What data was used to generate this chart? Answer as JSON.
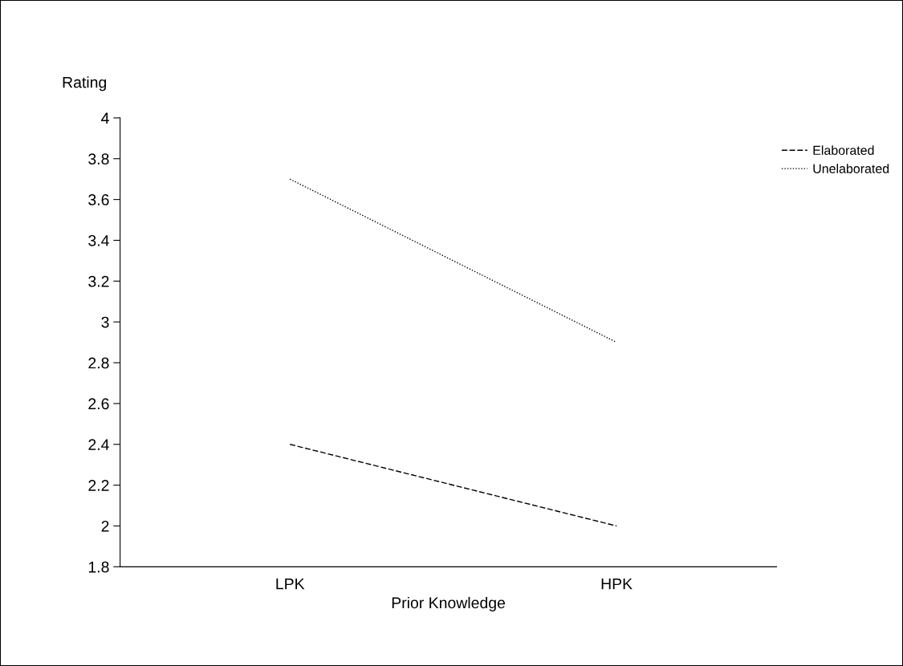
{
  "chart_data": {
    "type": "line",
    "ylabel": "Rating",
    "xlabel": "Prior Knowledge",
    "categories": [
      "LPK",
      "HPK"
    ],
    "series": [
      {
        "name": "Elaborated",
        "color": "#000000",
        "line_style": "dashed",
        "values": [
          2.4,
          2.0
        ]
      },
      {
        "name": "Unelaborated",
        "color": "#000000",
        "line_style": "dotted",
        "values": [
          3.7,
          2.9
        ]
      }
    ],
    "ylim": [
      1.8,
      4
    ],
    "yticks": [
      1.8,
      2,
      2.2,
      2.4,
      2.6,
      2.8,
      3,
      3.2,
      3.4,
      3.6,
      3.8,
      4
    ],
    "grid": false,
    "legend": "top right",
    "marker": "none"
  }
}
